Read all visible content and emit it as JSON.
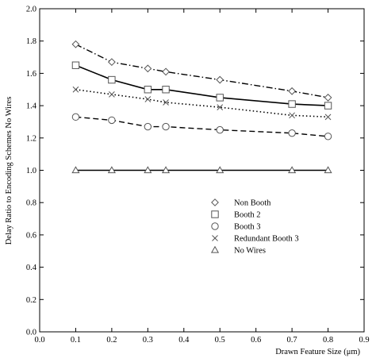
{
  "chart_data": {
    "type": "line",
    "title": "",
    "xlabel": "Drawn Feature Size (μm)",
    "ylabel": "Delay Ratio to Encoding Schemes No Wires",
    "xlim": [
      0.0,
      0.9
    ],
    "ylim": [
      0.0,
      2.0
    ],
    "xticks": [
      0.0,
      0.1,
      0.2,
      0.3,
      0.4,
      0.5,
      0.6,
      0.7,
      0.8,
      0.9
    ],
    "yticks": [
      0.0,
      0.2,
      0.4,
      0.6,
      0.8,
      1.0,
      1.2,
      1.4,
      1.6,
      1.8,
      2.0
    ],
    "xtick_labels": [
      "0.0",
      "0.1",
      "0.2",
      "0.3",
      "0.4",
      "0.5",
      "0.6",
      "0.7",
      "0.8",
      "0.9"
    ],
    "ytick_labels": [
      "0.0",
      "0.2",
      "0.4",
      "0.6",
      "0.8",
      "1.0",
      "1.2",
      "1.4",
      "1.6",
      "1.8",
      "2.0"
    ],
    "grid": false,
    "legend_position": "lower-center",
    "x": [
      0.1,
      0.2,
      0.3,
      0.35,
      0.5,
      0.7,
      0.8
    ],
    "series": [
      {
        "name": "Non Booth",
        "marker": "diamond",
        "line": "dashdot",
        "values": [
          1.78,
          1.67,
          1.63,
          1.61,
          1.56,
          1.49,
          1.45
        ]
      },
      {
        "name": "Booth 2",
        "marker": "square",
        "line": "solid",
        "values": [
          1.65,
          1.56,
          1.5,
          1.5,
          1.45,
          1.41,
          1.4
        ]
      },
      {
        "name": "Booth 3",
        "marker": "circle",
        "line": "dashed",
        "values": [
          1.33,
          1.31,
          1.27,
          1.27,
          1.25,
          1.23,
          1.21
        ]
      },
      {
        "name": "Redundant Booth 3",
        "marker": "x",
        "line": "dotted",
        "values": [
          1.5,
          1.47,
          1.44,
          1.42,
          1.39,
          1.34,
          1.33
        ]
      },
      {
        "name": "No Wires",
        "marker": "triangle",
        "line": "solid",
        "values": [
          1.0,
          1.0,
          1.0,
          1.0,
          1.0,
          1.0,
          1.0
        ]
      }
    ]
  }
}
